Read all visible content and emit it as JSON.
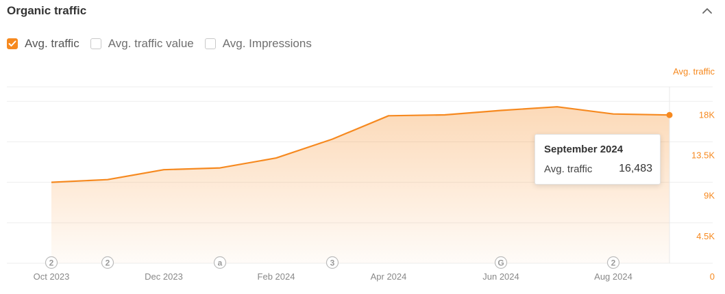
{
  "header": {
    "title": "Organic traffic"
  },
  "legend": [
    {
      "label": "Avg. traffic",
      "checked": true
    },
    {
      "label": "Avg. traffic value",
      "checked": false
    },
    {
      "label": "Avg. Impressions",
      "checked": false
    }
  ],
  "colors": {
    "accent": "#f6891f",
    "axis_text": "#888888",
    "grid": "#eeeeee"
  },
  "chart_data": {
    "type": "area",
    "y_axis_title": "Avg. traffic",
    "y_axis_side": "right",
    "ylim": [
      0,
      20000
    ],
    "y_ticks": [
      {
        "value": 18000,
        "label": "18K"
      },
      {
        "value": 13500,
        "label": "13.5K"
      },
      {
        "value": 9000,
        "label": "9K"
      },
      {
        "value": 4500,
        "label": "4.5K"
      },
      {
        "value": 0,
        "label": "0"
      }
    ],
    "x_tick_labels": [
      "Oct 2023",
      "Dec 2023",
      "Feb 2024",
      "Apr 2024",
      "Jun 2024",
      "Aug 2024"
    ],
    "x": [
      "Oct 2023",
      "Nov 2023",
      "Dec 2023",
      "Jan 2024",
      "Feb 2024",
      "Mar 2024",
      "Apr 2024",
      "May 2024",
      "Jun 2024",
      "Jul 2024",
      "Aug 2024",
      "Sep 2024"
    ],
    "series": [
      {
        "name": "Avg. traffic",
        "values": [
          9000,
          9300,
          10400,
          10600,
          11700,
          13800,
          16400,
          16500,
          17000,
          17400,
          16600,
          16483
        ]
      }
    ],
    "annotations": [
      {
        "x": "Oct 2023",
        "label": "2"
      },
      {
        "x": "Nov 2023",
        "label": "2"
      },
      {
        "x": "Jan 2024",
        "label": "a"
      },
      {
        "x": "Mar 2024",
        "label": "3"
      },
      {
        "x": "Jun 2024",
        "label": "G"
      },
      {
        "x": "Aug 2024",
        "label": "2"
      }
    ],
    "grid": true,
    "highlight": {
      "x": "Sep 2024"
    }
  },
  "tooltip": {
    "title": "September 2024",
    "label": "Avg. traffic",
    "value": "16,483"
  }
}
